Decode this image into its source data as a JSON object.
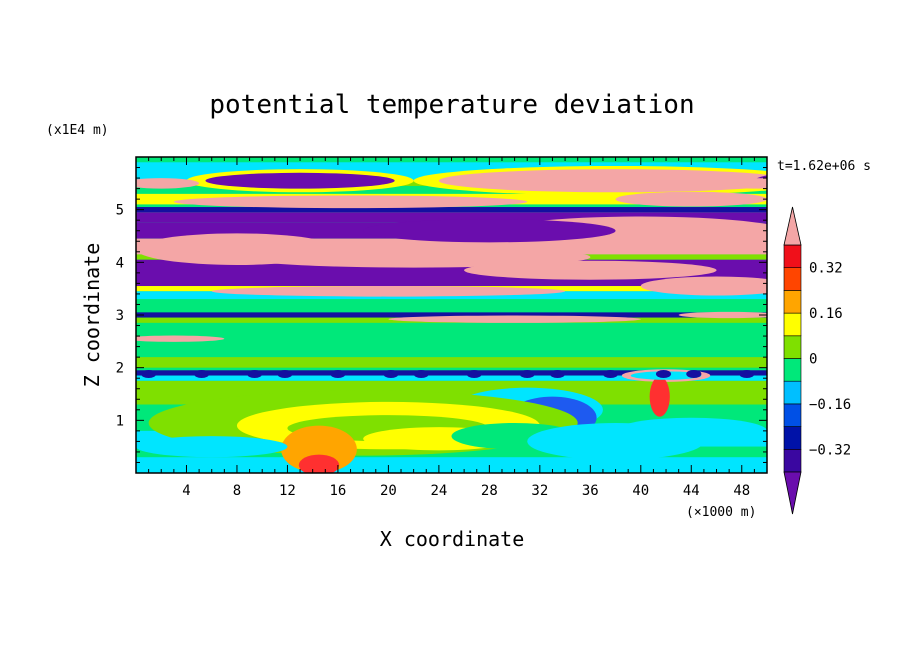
{
  "chart_data": {
    "type": "heatmap",
    "title": "potential temperature deviation",
    "xlabel": "X coordinate",
    "ylabel": "Z coordinate",
    "x_unit": "(×1000 m)",
    "y_unit": "(x1E4 m)",
    "time_label": "t=1.62e+06 s",
    "xlim": [
      0,
      50
    ],
    "ylim": [
      0,
      6
    ],
    "xticks": [
      4,
      8,
      12,
      16,
      20,
      24,
      28,
      32,
      36,
      40,
      44,
      48
    ],
    "xtick_labels": [
      "4",
      "8",
      "12",
      "16",
      "20",
      "24",
      "28",
      "32",
      "36",
      "40",
      "44",
      "48"
    ],
    "yticks": [
      1,
      2,
      3,
      4,
      5
    ],
    "ytick_labels": [
      "1",
      "2",
      "3",
      "4",
      "5"
    ],
    "colorbar": {
      "levels": [
        -0.4,
        -0.32,
        -0.24,
        -0.16,
        -0.08,
        0,
        0.08,
        0.16,
        0.24,
        0.32,
        0.4
      ],
      "labels": [
        "0.32",
        "0.16",
        "0",
        "−0.16",
        "−0.32"
      ],
      "label_values": [
        0.32,
        0.16,
        0,
        -0.16,
        -0.32
      ],
      "under_color": "#6a0dad",
      "over_color": "#f4a6a6",
      "colors": [
        "#3a07a0",
        "#0012a8",
        "#0050e6",
        "#00bfff",
        "#00e87a",
        "#7fe000",
        "#ffff00",
        "#ffa500",
        "#ff4500",
        "#f0101a"
      ]
    },
    "colors": {
      "purple": "#6a0dad",
      "navy": "#1410a0",
      "blue": "#1e5af0",
      "cyan": "#00e5ff",
      "green": "#00e87a",
      "lime": "#7fe000",
      "yellow": "#ffff00",
      "orange": "#ffa500",
      "red": "#ff3030",
      "pink": "#f4a6a6"
    }
  }
}
